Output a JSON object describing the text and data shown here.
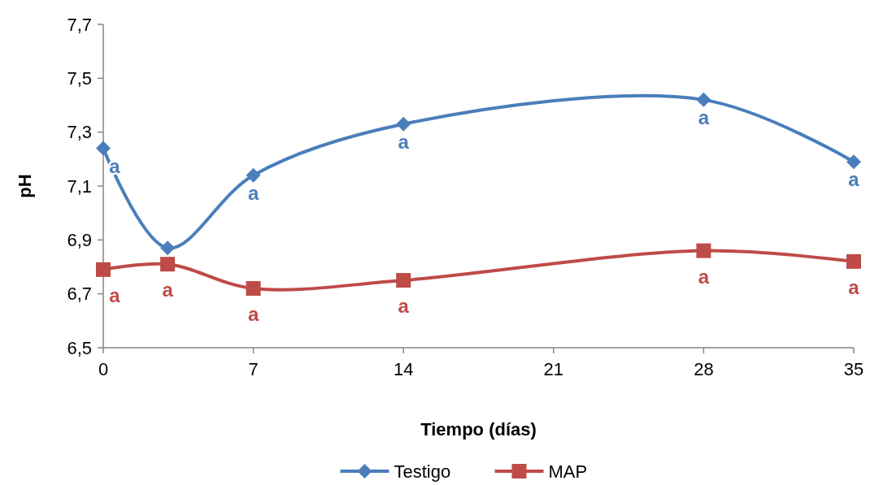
{
  "chart_data": {
    "type": "line",
    "xlabel": "Tiempo (días)",
    "ylabel": "pH",
    "x": [
      0,
      3,
      7,
      14,
      28,
      35
    ],
    "xlim": [
      0,
      35
    ],
    "xticks": [
      0,
      7,
      14,
      21,
      28,
      35
    ],
    "ylim": [
      6.5,
      7.7
    ],
    "yticks": [
      {
        "value": 6.5,
        "label": "6,5"
      },
      {
        "value": 6.7,
        "label": "6,7"
      },
      {
        "value": 6.9,
        "label": "6,9"
      },
      {
        "value": 7.1,
        "label": "7,1"
      },
      {
        "value": 7.3,
        "label": "7,3"
      },
      {
        "value": 7.5,
        "label": "7,5"
      },
      {
        "value": 7.7,
        "label": "7,7"
      }
    ],
    "series": [
      {
        "name": "Testigo",
        "color": "#4a7ebb",
        "marker": "diamond",
        "values": [
          7.24,
          6.87,
          7.14,
          7.33,
          7.42,
          7.19
        ],
        "value_labels": [
          "a",
          null,
          "a",
          "a",
          "a",
          "a"
        ]
      },
      {
        "name": "MAP",
        "color": "#be4b48",
        "marker": "square",
        "values": [
          6.79,
          6.81,
          6.72,
          6.75,
          6.86,
          6.82
        ],
        "value_labels": [
          "a",
          "a",
          "a",
          "a",
          "a",
          "a"
        ]
      }
    ],
    "grid": false,
    "legend": "bottom"
  }
}
